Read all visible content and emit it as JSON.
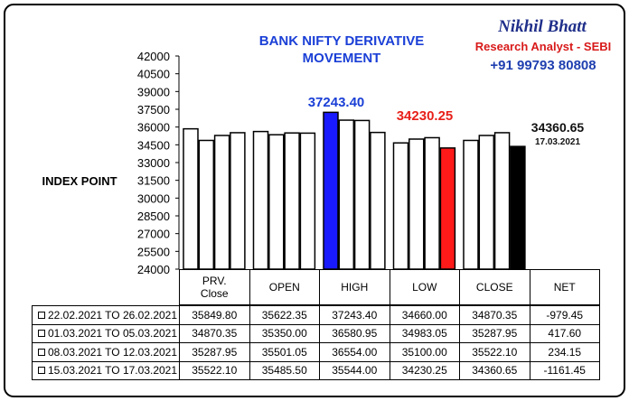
{
  "chart_data": {
    "type": "bar",
    "title": "BANK NIFTY DERIVATIVE MOVEMENT",
    "y_label": "INDEX POINT",
    "categories": [
      "PRV.\nClose",
      "OPEN",
      "HIGH",
      "LOW",
      "CLOSE"
    ],
    "series": [
      {
        "name": "22.02.2021 TO 26.02.2021",
        "colors": [
          "#ffffff",
          "#ffffff",
          "#1a1aff",
          "#ffffff",
          "#ffffff"
        ],
        "values": [
          35849.8,
          35622.35,
          37243.4,
          34660.0,
          34870.35
        ],
        "value_labels": [
          "35849.80",
          "35622.35",
          "37243.40",
          "34660.00",
          "34870.35"
        ]
      },
      {
        "name": "01.03.2021 TO 05.03.2021",
        "colors": [
          "#ffffff",
          "#ffffff",
          "#ffffff",
          "#ffffff",
          "#ffffff"
        ],
        "values": [
          34870.35,
          35350.0,
          36580.95,
          34983.05,
          35287.95
        ],
        "value_labels": [
          "34870.35",
          "35350.00",
          "36580.95",
          "34983.05",
          "35287.95"
        ]
      },
      {
        "name": "08.03.2021 TO 12.03.2021",
        "colors": [
          "#ffffff",
          "#ffffff",
          "#ffffff",
          "#ffffff",
          "#ffffff"
        ],
        "values": [
          35287.95,
          35501.05,
          36554.0,
          35100.0,
          35522.1
        ],
        "value_labels": [
          "35287.95",
          "35501.05",
          "36554.00",
          "35100.00",
          "35522.10"
        ]
      },
      {
        "name": "15.03.2021 TO 17.03.2021",
        "colors": [
          "#ffffff",
          "#ffffff",
          "#ffffff",
          "#ff1a1a",
          "#000000"
        ],
        "values": [
          35522.1,
          35485.5,
          35544.0,
          34230.25,
          34360.65
        ],
        "value_labels": [
          "35522.10",
          "35485.50",
          "35544.00",
          "34230.25",
          "34360.65"
        ]
      }
    ],
    "ylim": [
      24000,
      42000
    ],
    "yticks": [
      24000,
      25500,
      27000,
      28500,
      30000,
      31500,
      33000,
      34500,
      36000,
      37500,
      39000,
      40500,
      42000
    ],
    "annotations": [
      {
        "text": "37243.40",
        "color": "#1a3fd6"
      },
      {
        "text": "34230.25",
        "color": "#e8201a"
      },
      {
        "text": "34360.65",
        "color": "#111111"
      },
      {
        "text": "17.03.2021",
        "color": "#111111"
      }
    ],
    "table": {
      "net_header": "NET",
      "net": [
        "-979.45",
        "417.60",
        "234.15",
        "-1161.45"
      ]
    }
  },
  "brand": {
    "name": "Nikhil Bhatt",
    "role": "Research Analyst - SEBI",
    "phone": "+91 99793 80808"
  }
}
